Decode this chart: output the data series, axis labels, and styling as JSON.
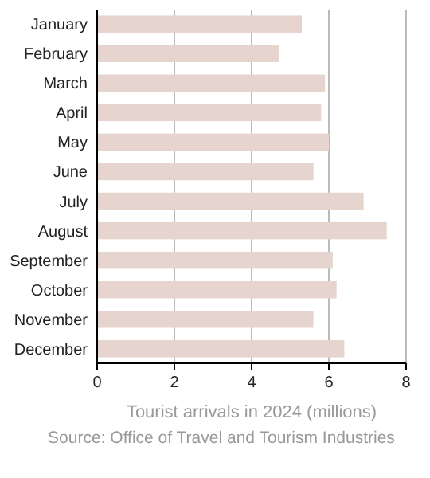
{
  "chart_data": {
    "type": "bar",
    "orientation": "horizontal",
    "xlabel": "Tourist arrivals in 2024 (millions)",
    "annotations": [
      "Source: Office of Travel and Tourism Industries"
    ],
    "categories": [
      "January",
      "February",
      "March",
      "April",
      "May",
      "June",
      "July",
      "August",
      "September",
      "October",
      "November",
      "December"
    ],
    "values": [
      5.3,
      4.7,
      5.9,
      5.8,
      6.0,
      5.6,
      6.9,
      7.5,
      6.1,
      6.2,
      5.6,
      6.4
    ],
    "color": "#e6d5ce",
    "xlim": [
      0,
      8
    ],
    "xticks": [
      0,
      2,
      4,
      6,
      8
    ],
    "grid": "x"
  }
}
